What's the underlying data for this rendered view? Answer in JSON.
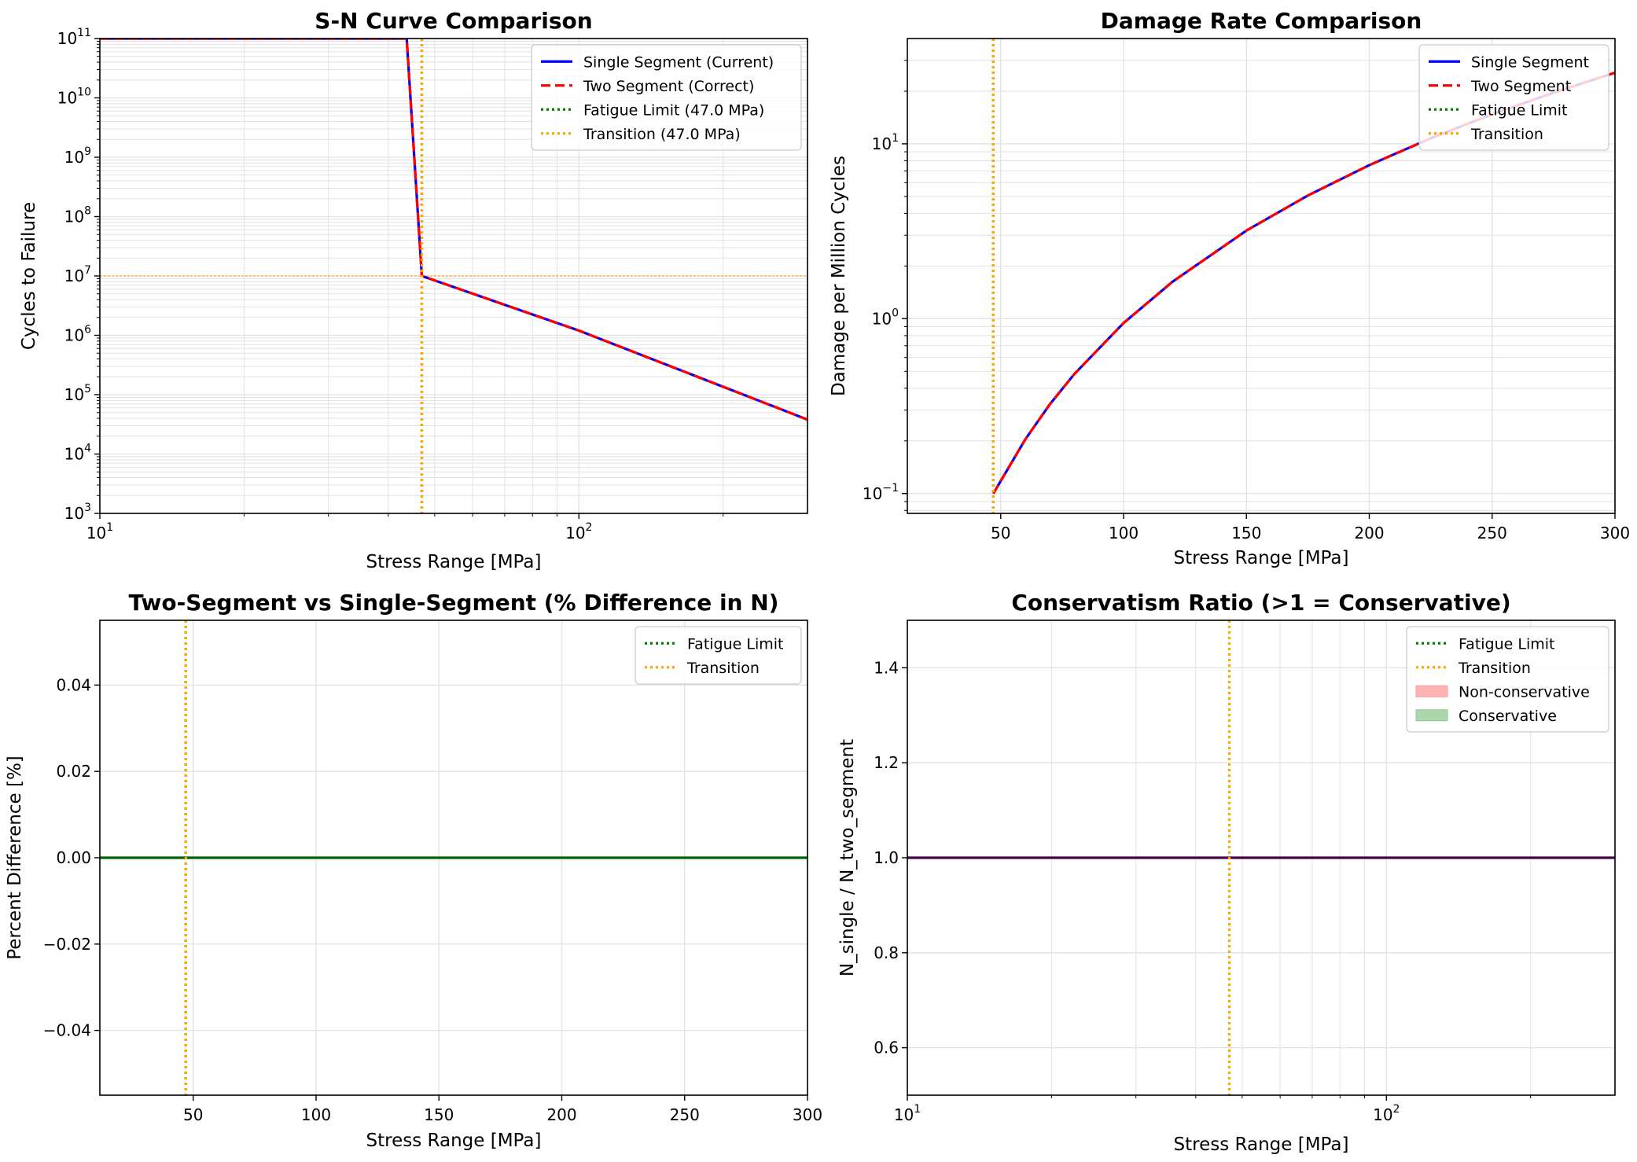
{
  "colors": {
    "single": "#0000ff",
    "two": "#ff0000",
    "fatigue": "#008000",
    "transition": "#ffa500",
    "nonconservative": "#ff9999",
    "conservative": "#90c890",
    "grid": "#e2e2e2",
    "thin_h": "#ff8a00"
  },
  "chart_data": [
    {
      "type": "line",
      "title": "S-N Curve Comparison",
      "xlabel": "Stress Range [MPa]",
      "ylabel": "Cycles to Failure",
      "xscale": "log",
      "yscale": "log",
      "xlim": [
        10,
        300
      ],
      "ylim": [
        1000,
        100000000000
      ],
      "xticks": [
        {
          "v": 10,
          "base": "10",
          "exp": "1"
        },
        {
          "v": 100,
          "base": "10",
          "exp": "2"
        }
      ],
      "yticks": [
        {
          "v": 1000,
          "base": "10",
          "exp": "3"
        },
        {
          "v": 10000,
          "base": "10",
          "exp": "4"
        },
        {
          "v": 100000,
          "base": "10",
          "exp": "5"
        },
        {
          "v": 1000000,
          "base": "10",
          "exp": "6"
        },
        {
          "v": 10000000,
          "base": "10",
          "exp": "7"
        },
        {
          "v": 100000000,
          "base": "10",
          "exp": "8"
        },
        {
          "v": 1000000000,
          "base": "10",
          "exp": "9"
        },
        {
          "v": 10000000000,
          "base": "10",
          "exp": "10"
        },
        {
          "v": 100000000000,
          "base": "10",
          "exp": "11"
        }
      ],
      "grid": true,
      "legend_position": "top-right",
      "series": [
        {
          "name": "Single Segment (Current)",
          "style": "solid",
          "color": "#0000ff",
          "x": [
            10,
            43.7,
            47.0,
            100,
            300
          ],
          "y": [
            100000000000,
            100000000000,
            10000000,
            1200000,
            38000
          ]
        },
        {
          "name": "Two Segment (Correct)",
          "style": "dashed",
          "color": "#ff0000",
          "x": [
            10,
            43.7,
            47.0,
            100,
            300
          ],
          "y": [
            100000000000,
            100000000000,
            10000000,
            1200000,
            38000
          ]
        }
      ],
      "vlines": [
        {
          "name": "Fatigue Limit (47.0 MPa)",
          "x": 47.0,
          "color": "#008000"
        },
        {
          "name": "Transition (47.0 MPa)",
          "x": 47.0,
          "color": "#ffa500"
        }
      ],
      "hlines": [
        {
          "y": 10000000,
          "color": "#ff8a00",
          "style": "thin-dashed"
        }
      ]
    },
    {
      "type": "line",
      "title": "Damage Rate Comparison",
      "xlabel": "Stress Range [MPa]",
      "ylabel": "Damage per Million Cycles",
      "xscale": "linear",
      "yscale": "log",
      "xlim": [
        12,
        300
      ],
      "ylim": [
        0.077,
        40
      ],
      "xticks": [
        {
          "v": 50,
          "label": "50"
        },
        {
          "v": 100,
          "label": "100"
        },
        {
          "v": 150,
          "label": "150"
        },
        {
          "v": 200,
          "label": "200"
        },
        {
          "v": 250,
          "label": "250"
        },
        {
          "v": 300,
          "label": "300"
        }
      ],
      "yticks": [
        {
          "v": 0.1,
          "base": "10",
          "exp": "−1"
        },
        {
          "v": 1,
          "base": "10",
          "exp": "0"
        },
        {
          "v": 10,
          "base": "10",
          "exp": "1"
        }
      ],
      "grid": true,
      "legend_position": "top-right",
      "series": [
        {
          "name": "Single Segment",
          "style": "solid",
          "color": "#0000ff",
          "x": [
            47,
            50,
            60,
            70,
            80,
            100,
            120,
            150,
            175,
            200,
            225,
            250,
            275,
            300
          ],
          "y": [
            0.1,
            0.118,
            0.204,
            0.324,
            0.483,
            0.944,
            1.63,
            3.19,
            5.06,
            7.55,
            10.75,
            14.75,
            19.6,
            25.5
          ]
        },
        {
          "name": "Two Segment",
          "style": "dashed",
          "color": "#ff0000",
          "x": [
            47,
            50,
            60,
            70,
            80,
            100,
            120,
            150,
            175,
            200,
            225,
            250,
            275,
            300
          ],
          "y": [
            0.1,
            0.118,
            0.204,
            0.324,
            0.483,
            0.944,
            1.63,
            3.19,
            5.06,
            7.55,
            10.75,
            14.75,
            19.6,
            25.5
          ]
        }
      ],
      "vlines": [
        {
          "name": "Fatigue Limit",
          "x": 47.0,
          "color": "#008000"
        },
        {
          "name": "Transition",
          "x": 47.0,
          "color": "#ffa500"
        }
      ]
    },
    {
      "type": "line",
      "title": "Two-Segment vs Single-Segment (% Difference in N)",
      "xlabel": "Stress Range [MPa]",
      "ylabel": "Percent Difference [%]",
      "xscale": "linear",
      "yscale": "linear",
      "xlim": [
        12,
        300
      ],
      "ylim": [
        -0.055,
        0.055
      ],
      "xticks": [
        {
          "v": 50,
          "label": "50"
        },
        {
          "v": 100,
          "label": "100"
        },
        {
          "v": 150,
          "label": "150"
        },
        {
          "v": 200,
          "label": "200"
        },
        {
          "v": 250,
          "label": "250"
        },
        {
          "v": 300,
          "label": "300"
        }
      ],
      "yticks": [
        {
          "v": -0.04,
          "label": "−0.04"
        },
        {
          "v": -0.02,
          "label": "−0.02"
        },
        {
          "v": 0,
          "label": "0.00"
        },
        {
          "v": 0.02,
          "label": "0.02"
        },
        {
          "v": 0.04,
          "label": "0.04"
        }
      ],
      "grid": true,
      "legend_position": "top-right",
      "series": [
        {
          "style": "solid",
          "color": "#006400",
          "x": [
            12,
            300
          ],
          "y": [
            0,
            0
          ]
        }
      ],
      "vlines": [
        {
          "name": "Fatigue Limit",
          "x": 47.0,
          "color": "#008000"
        },
        {
          "name": "Transition",
          "x": 47.0,
          "color": "#ffa500"
        }
      ]
    },
    {
      "type": "line",
      "title": "Conservatism Ratio (>1 = Conservative)",
      "xlabel": "Stress Range [MPa]",
      "ylabel": "N_single / N_two_segment",
      "xscale": "log",
      "yscale": "linear",
      "xlim": [
        10,
        300
      ],
      "ylim": [
        0.5,
        1.5
      ],
      "xticks": [
        {
          "v": 10,
          "base": "10",
          "exp": "1"
        },
        {
          "v": 100,
          "base": "10",
          "exp": "2"
        }
      ],
      "yticks": [
        {
          "v": 0.6,
          "label": "0.6"
        },
        {
          "v": 0.8,
          "label": "0.8"
        },
        {
          "v": 1.0,
          "label": "1.0"
        },
        {
          "v": 1.2,
          "label": "1.2"
        },
        {
          "v": 1.4,
          "label": "1.4"
        }
      ],
      "grid": true,
      "legend_position": "top-right",
      "series": [
        {
          "style": "solid",
          "color": "#4b0050",
          "x": [
            10,
            300
          ],
          "y": [
            1.0,
            1.0
          ]
        }
      ],
      "vlines": [
        {
          "name": "Transition",
          "x": 47.0,
          "color": "#ffa500"
        }
      ],
      "legend_entries": [
        {
          "name": "Fatigue Limit",
          "kind": "line",
          "color": "#008000"
        },
        {
          "name": "Transition",
          "kind": "line",
          "color": "#ffa500"
        },
        {
          "name": "Non-conservative",
          "kind": "patch",
          "color": "#ff9999"
        },
        {
          "name": "Conservative",
          "kind": "patch",
          "color": "#90c890"
        }
      ]
    }
  ]
}
